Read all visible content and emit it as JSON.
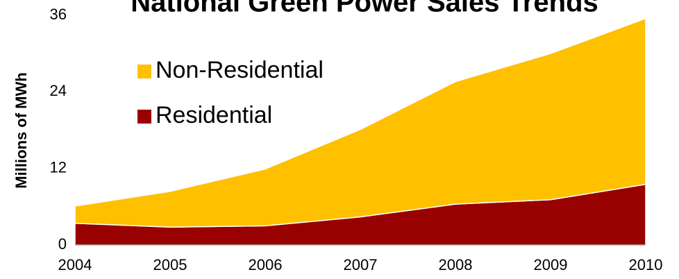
{
  "chart_data": {
    "type": "stacked_area",
    "title": "National Green Power Sales Trends",
    "ylabel": "Millions of MWh",
    "categories": [
      "2004",
      "2005",
      "2006",
      "2007",
      "2008",
      "2009",
      "2010"
    ],
    "series": [
      {
        "name": "Residential",
        "color": "#990000",
        "values": [
          3.4,
          2.8,
          3.0,
          4.4,
          6.4,
          7.1,
          9.5
        ]
      },
      {
        "name": "Non-Residential",
        "color": "#ffc000",
        "values": [
          2.7,
          5.6,
          8.9,
          13.7,
          19.2,
          22.9,
          26.0
        ]
      }
    ],
    "ylim": [
      0,
      36
    ],
    "yticks": [
      0,
      12,
      24,
      36
    ],
    "legend": "upper left"
  }
}
